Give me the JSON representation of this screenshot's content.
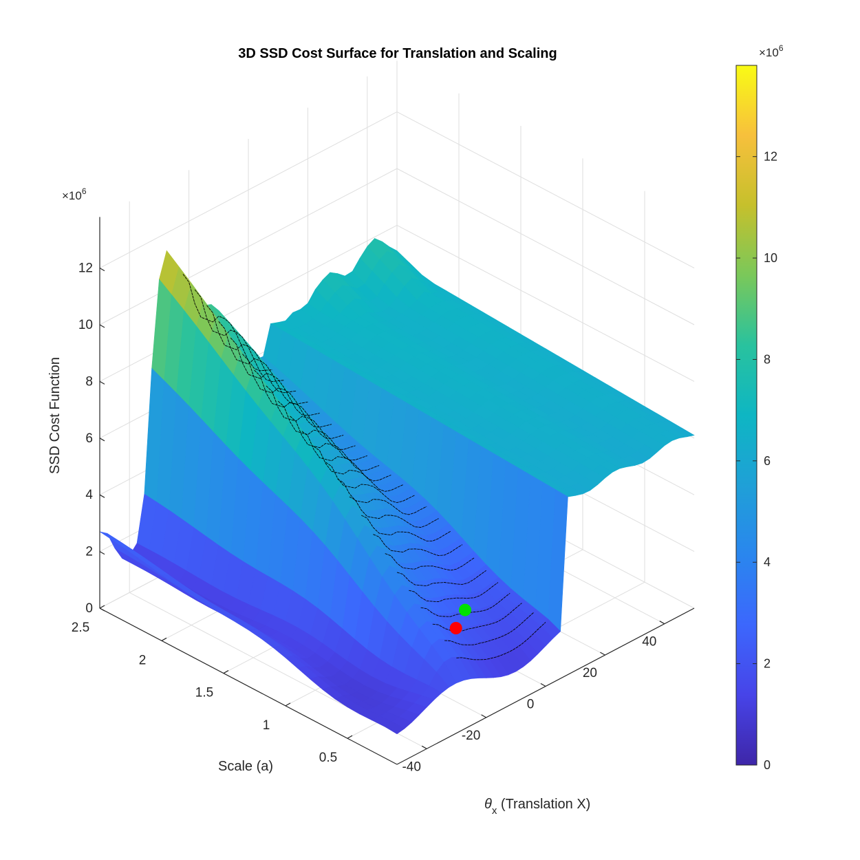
{
  "chart_data": {
    "type": "surface",
    "title": "3D SSD Cost Surface for Translation and Scaling",
    "xlabel_symbol": "θ",
    "xlabel_sub": "x",
    "xlabel_rest": " (Translation X)",
    "ylabel": "Scale (a)",
    "zlabel": "SSD Cost Function",
    "x_ticks": [
      "-40",
      "-20",
      "0",
      "20",
      "40"
    ],
    "x_tick_values": [
      -40,
      -20,
      0,
      20,
      40
    ],
    "xlim": [
      -50,
      50
    ],
    "y_ticks": [
      "0.5",
      "1",
      "1.5",
      "2",
      "2.5"
    ],
    "y_tick_values": [
      0.5,
      1,
      1.5,
      2,
      2.5
    ],
    "ylim": [
      0.1,
      2.5
    ],
    "z_ticks": [
      "0",
      "2",
      "4",
      "6",
      "8",
      "10",
      "12"
    ],
    "z_tick_values": [
      0,
      2,
      4,
      6,
      8,
      10,
      12
    ],
    "zlim": [
      0,
      13.8
    ],
    "z_exponent_base": "×10",
    "z_exponent_power": "6",
    "grid": true,
    "colormap": "parula",
    "colorbar": {
      "ticks": [
        "0",
        "2",
        "4",
        "6",
        "8",
        "10",
        "12"
      ],
      "tick_values": [
        0,
        2,
        4,
        6,
        8,
        10,
        12
      ],
      "range": [
        0,
        13.8
      ],
      "exponent_base": "×10",
      "exponent_power": "6"
    },
    "surface_profiles": [
      {
        "y": 2.5,
        "x": [
          -50,
          -48,
          -46,
          -44,
          -42,
          -40,
          -38,
          -36,
          -34,
          -32,
          -30,
          -28,
          -26,
          -24,
          -22,
          -20,
          -18,
          -16,
          -14,
          -12,
          -10,
          -8,
          -6,
          -4,
          -2,
          0,
          2,
          4,
          6,
          8,
          10,
          12,
          14,
          16,
          18,
          20,
          22,
          24,
          26,
          28,
          30,
          32,
          34,
          36,
          38,
          40,
          42,
          44,
          46,
          48,
          50
        ],
        "z": [
          2.7,
          2.6,
          2.2,
          1.5,
          1.3,
          1.3,
          1.5,
          1.9,
          4.5,
          8.5,
          10.5,
          11.5,
          11.0,
          10.6,
          9.7,
          9.1,
          8.9,
          8.7,
          8.8,
          8.6,
          8.3,
          7.8,
          7.2,
          6.6,
          6.2,
          6.0,
          5.9,
          5.8,
          5.9,
          6.1,
          6.4,
          6.6,
          6.8,
          6.9,
          6.8,
          6.9,
          7.2,
          7.4,
          7.5,
          7.6,
          7.4,
          7.2,
          7.1,
          7.3,
          7.6,
          7.8,
          8.0,
          7.8,
          7.6,
          7.3,
          7.1
        ]
      }
    ],
    "minima_markers": [
      {
        "label": "red",
        "x": -6,
        "y": 0.68,
        "z": 1.05,
        "color": "#ff0000"
      },
      {
        "label": "green",
        "x": 0,
        "y": 0.75,
        "z": 1.2,
        "color": "#00e000"
      }
    ]
  }
}
